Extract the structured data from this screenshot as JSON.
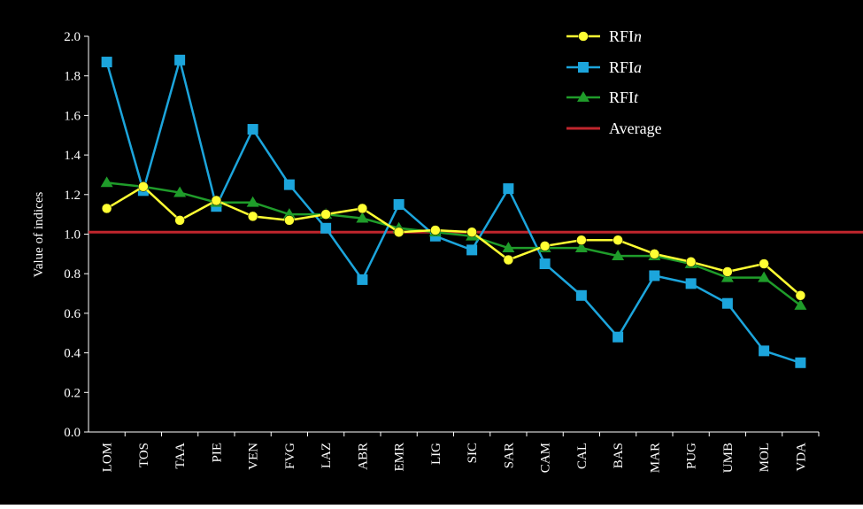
{
  "chart_data": {
    "type": "line",
    "title": "",
    "xlabel": "",
    "ylabel": "Value of indices",
    "ylim": [
      0,
      2.0
    ],
    "yticks": [
      "0.0",
      "0.2",
      "0.4",
      "0.6",
      "0.8",
      "1.0",
      "1.2",
      "1.4",
      "1.6",
      "1.8",
      "2.0"
    ],
    "grid": false,
    "legend_position": "top-right",
    "categories": [
      "LOM",
      "TOS",
      "TAA",
      "PIE",
      "VEN",
      "FVG",
      "LAZ",
      "ABR",
      "EMR",
      "LIG",
      "SIC",
      "SAR",
      "CAM",
      "CAL",
      "BAS",
      "MAR",
      "PUG",
      "UMB",
      "MOL",
      "VDA"
    ],
    "series": [
      {
        "name_main": "RFI",
        "name_italic": "n",
        "color": "#ffff33",
        "marker": "circle",
        "values": [
          1.13,
          1.24,
          1.07,
          1.17,
          1.09,
          1.07,
          1.1,
          1.13,
          1.01,
          1.02,
          1.01,
          0.87,
          0.94,
          0.97,
          0.97,
          0.9,
          0.86,
          0.81,
          0.85,
          0.69
        ]
      },
      {
        "name_main": "RFI",
        "name_italic": "a",
        "color": "#1ca5dc",
        "marker": "square",
        "values": [
          1.87,
          1.22,
          1.88,
          1.14,
          1.53,
          1.25,
          1.03,
          0.77,
          1.15,
          0.99,
          0.92,
          1.23,
          0.85,
          0.69,
          0.48,
          0.79,
          0.75,
          0.65,
          0.41,
          0.35
        ]
      },
      {
        "name_main": "RFI",
        "name_italic": "t",
        "color": "#1f9c2a",
        "marker": "triangle",
        "values": [
          1.26,
          1.24,
          1.21,
          1.16,
          1.16,
          1.1,
          1.1,
          1.08,
          1.03,
          1.01,
          0.99,
          0.93,
          0.93,
          0.93,
          0.89,
          0.89,
          0.85,
          0.78,
          0.78,
          0.64
        ]
      }
    ],
    "reference_line": {
      "name": "Average",
      "value": 1.01,
      "color": "#c0262d"
    }
  },
  "colors": {
    "background": "#000000",
    "axis": "#ffffff",
    "text": "#ffffff"
  }
}
